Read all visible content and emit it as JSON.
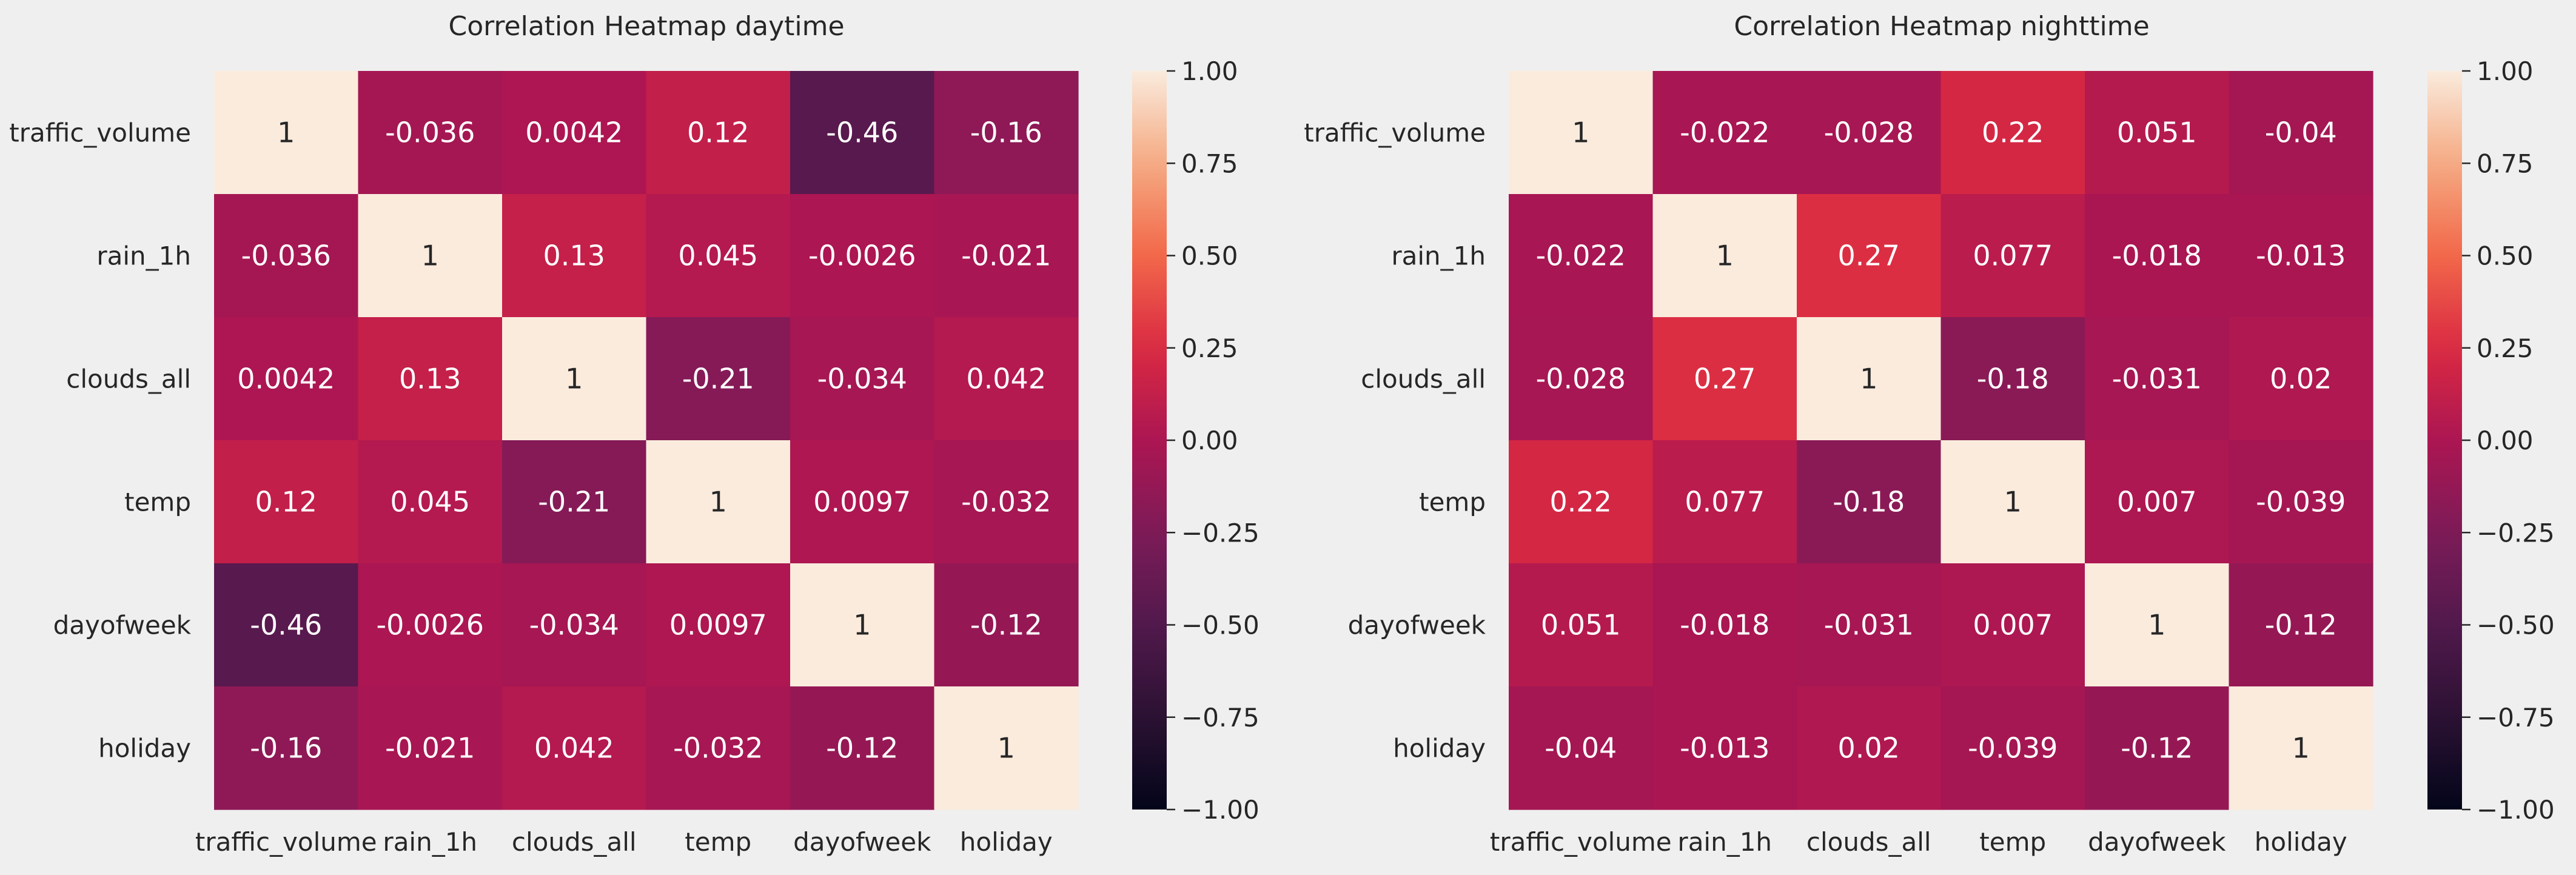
{
  "chart_data": [
    {
      "type": "heatmap",
      "title": "Correlation Heatmap daytime",
      "xlabel": "",
      "ylabel": "",
      "variables": [
        "traffic_volume",
        "rain_1h",
        "clouds_all",
        "temp",
        "dayofweek",
        "holiday"
      ],
      "matrix": [
        [
          1,
          -0.036,
          0.0042,
          0.12,
          -0.46,
          -0.16
        ],
        [
          -0.036,
          1,
          0.13,
          0.045,
          -0.0026,
          -0.021
        ],
        [
          0.0042,
          0.13,
          1,
          -0.21,
          -0.034,
          0.042
        ],
        [
          0.12,
          0.045,
          -0.21,
          1,
          0.0097,
          -0.032
        ],
        [
          -0.46,
          -0.0026,
          -0.034,
          0.0097,
          1,
          -0.12
        ],
        [
          -0.16,
          -0.021,
          0.042,
          -0.032,
          -0.12,
          1
        ]
      ],
      "annotations": [
        [
          "1",
          "-0.036",
          "0.0042",
          "0.12",
          "-0.46",
          "-0.16"
        ],
        [
          "-0.036",
          "1",
          "0.13",
          "0.045",
          "-0.0026",
          "-0.021"
        ],
        [
          "0.0042",
          "0.13",
          "1",
          "-0.21",
          "-0.034",
          "0.042"
        ],
        [
          "0.12",
          "0.045",
          "-0.21",
          "1",
          "0.0097",
          "-0.032"
        ],
        [
          "-0.46",
          "-0.0026",
          "-0.034",
          "0.0097",
          "1",
          "-0.12"
        ],
        [
          "-0.16",
          "-0.021",
          "0.042",
          "-0.032",
          "-0.12",
          "1"
        ]
      ],
      "colorbar": {
        "range": [
          -1.0,
          1.0
        ],
        "ticks": [
          1.0,
          0.75,
          0.5,
          0.25,
          0.0,
          -0.25,
          -0.5,
          -0.75,
          -1.0
        ],
        "tick_labels": [
          "1.00",
          "0.75",
          "0.50",
          "0.25",
          "0.00",
          "−0.25",
          "−0.50",
          "−0.75",
          "−1.00"
        ],
        "colormap": "rocket"
      },
      "grid": false
    },
    {
      "type": "heatmap",
      "title": "Correlation Heatmap nighttime",
      "xlabel": "",
      "ylabel": "",
      "variables": [
        "traffic_volume",
        "rain_1h",
        "clouds_all",
        "temp",
        "dayofweek",
        "holiday"
      ],
      "matrix": [
        [
          1,
          -0.022,
          -0.028,
          0.22,
          0.051,
          -0.04
        ],
        [
          -0.022,
          1,
          0.27,
          0.077,
          -0.018,
          -0.013
        ],
        [
          -0.028,
          0.27,
          1,
          -0.18,
          -0.031,
          0.02
        ],
        [
          0.22,
          0.077,
          -0.18,
          1,
          0.007,
          -0.039
        ],
        [
          0.051,
          -0.018,
          -0.031,
          0.007,
          1,
          -0.12
        ],
        [
          -0.04,
          -0.013,
          0.02,
          -0.039,
          -0.12,
          1
        ]
      ],
      "annotations": [
        [
          "1",
          "-0.022",
          "-0.028",
          "0.22",
          "0.051",
          "-0.04"
        ],
        [
          "-0.022",
          "1",
          "0.27",
          "0.077",
          "-0.018",
          "-0.013"
        ],
        [
          "-0.028",
          "0.27",
          "1",
          "-0.18",
          "-0.031",
          "0.02"
        ],
        [
          "0.22",
          "0.077",
          "-0.18",
          "1",
          "0.007",
          "-0.039"
        ],
        [
          "0.051",
          "-0.018",
          "-0.031",
          "0.007",
          "1",
          "-0.12"
        ],
        [
          "-0.04",
          "-0.013",
          "0.02",
          "-0.039",
          "-0.12",
          "1"
        ]
      ],
      "colorbar": {
        "range": [
          -1.0,
          1.0
        ],
        "ticks": [
          1.0,
          0.75,
          0.5,
          0.25,
          0.0,
          -0.25,
          -0.5,
          -0.75,
          -1.0
        ],
        "tick_labels": [
          "1.00",
          "0.75",
          "0.50",
          "0.25",
          "0.00",
          "−0.25",
          "−0.50",
          "−0.75",
          "−1.00"
        ],
        "colormap": "rocket"
      },
      "grid": false
    }
  ],
  "colors": {
    "background": "#efefef",
    "text": "#262626",
    "annotation_light": "#ffffff",
    "annotation_dark": "#262626"
  }
}
